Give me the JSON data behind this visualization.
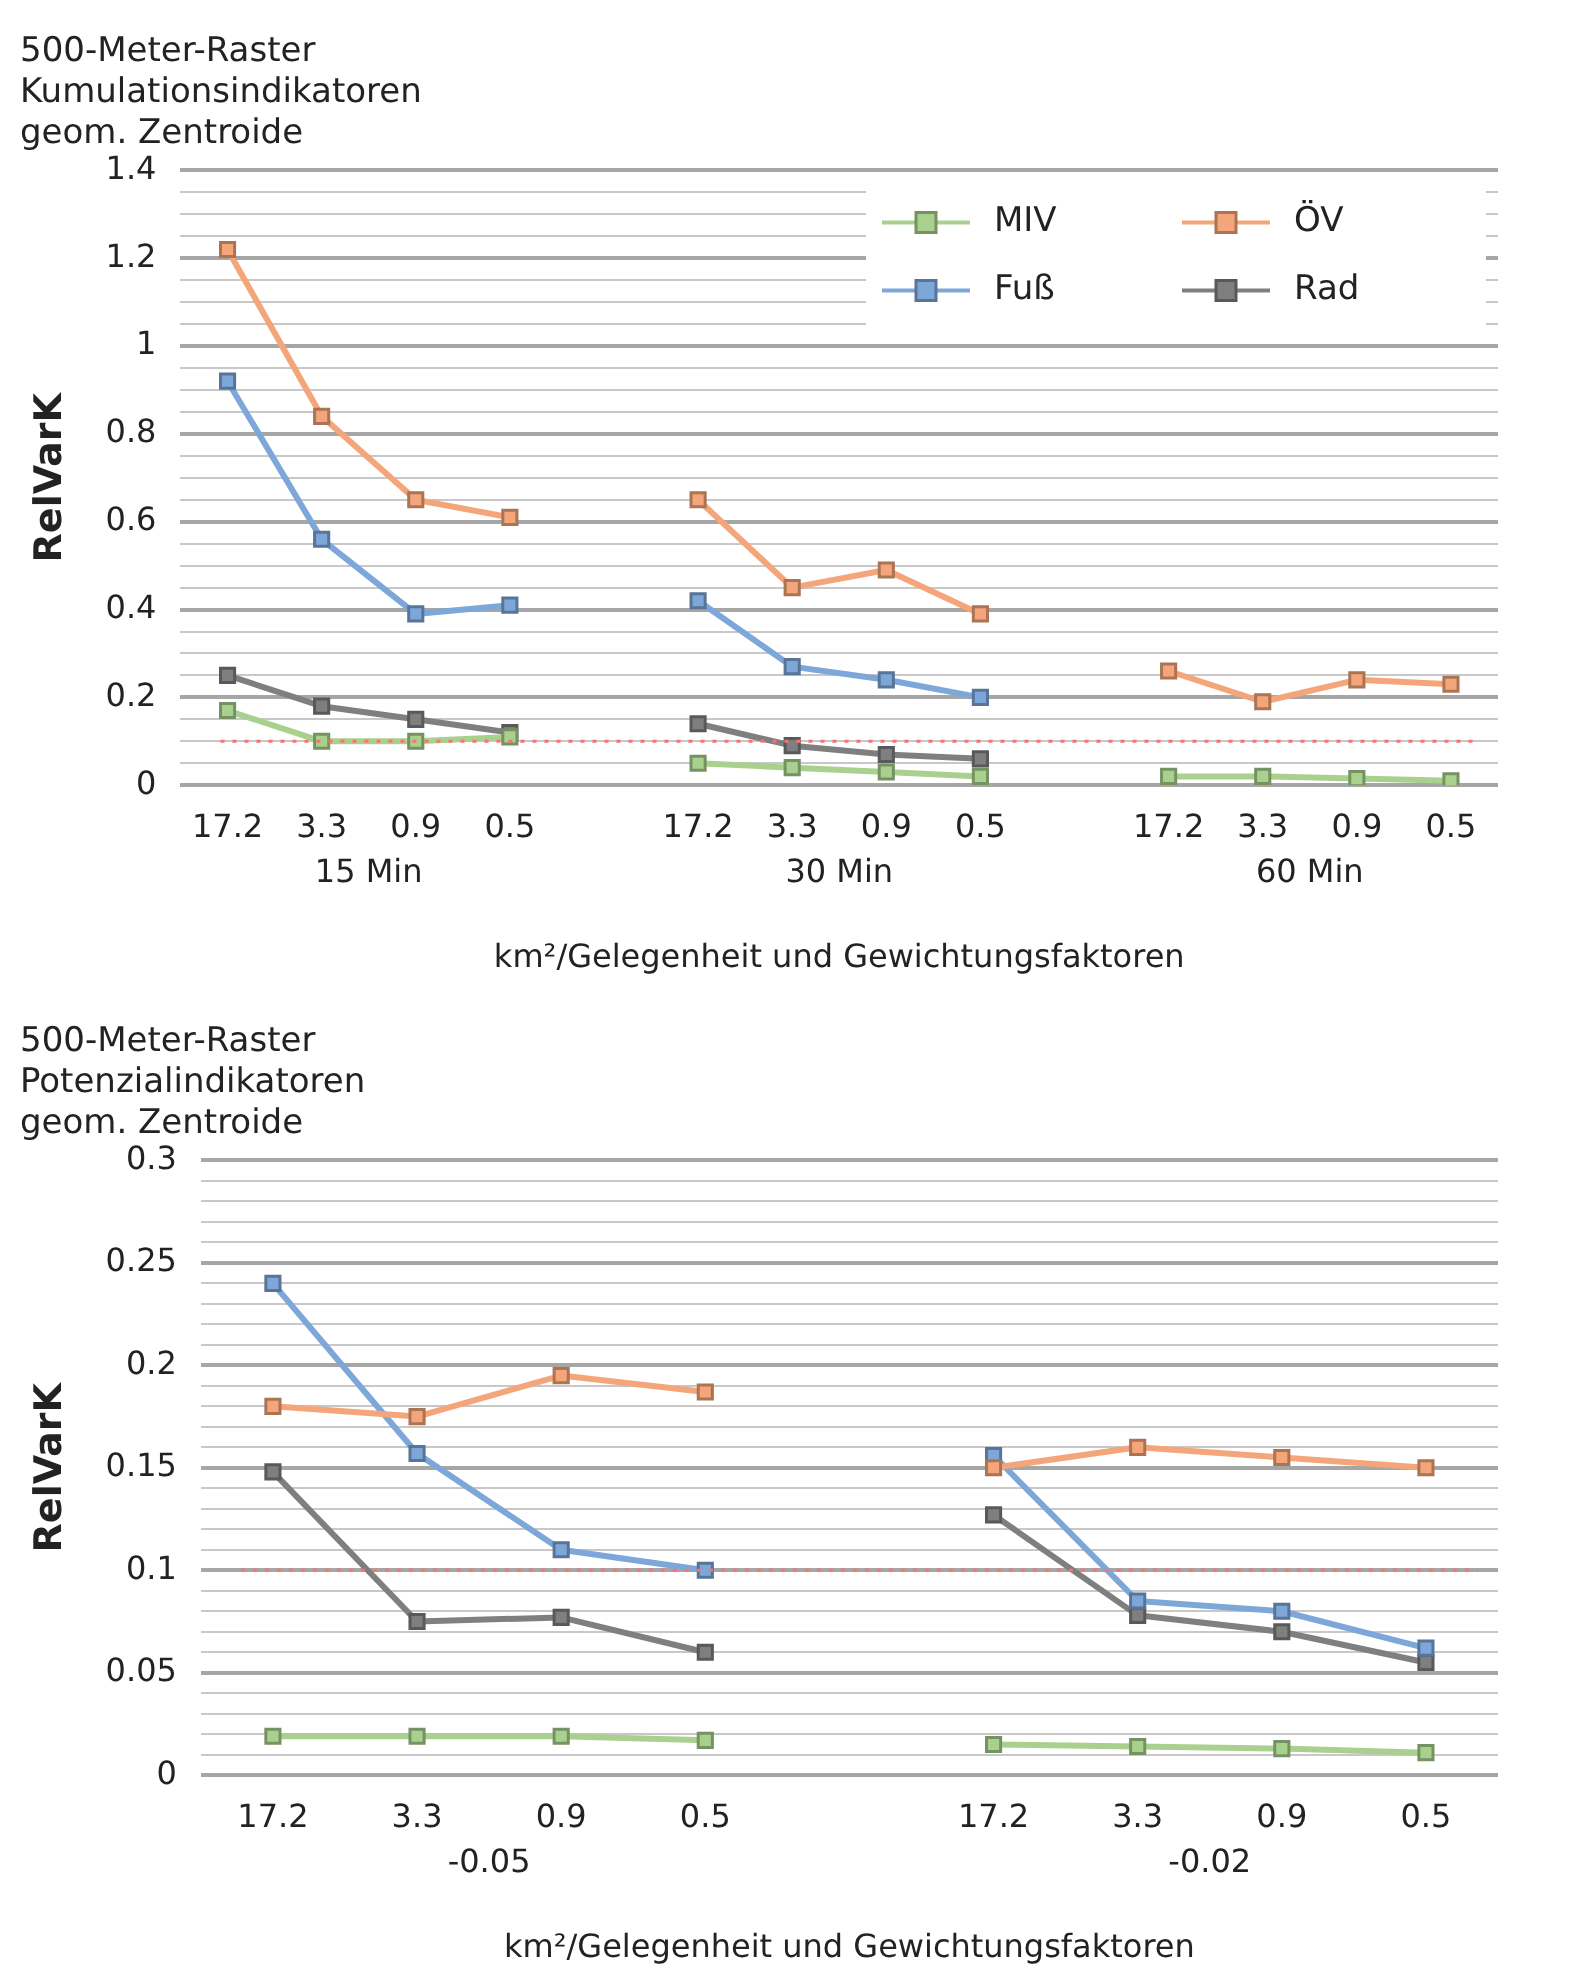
{
  "chart_data": [
    {
      "type": "line",
      "title": "500-Meter-Raster\nKumulationsindikatoren\ngeom. Zentroide",
      "xlabel": "km²/Gelegenheit und Gewichtungsfaktoren",
      "ylabel": "RelVarK",
      "categories": [
        "17.2",
        "3.3",
        "0.9",
        "0.5",
        null,
        "17.2",
        "3.3",
        "0.9",
        "0.5",
        null,
        "17.2",
        "3.3",
        "0.9",
        "0.5"
      ],
      "annotations": [
        "15 Min",
        "30 Min",
        "60 Min"
      ],
      "series": [
        {
          "name": "MIV",
          "color": "#a9d18e",
          "values": [
            0.17,
            0.1,
            0.1,
            0.11,
            null,
            0.05,
            0.04,
            0.03,
            0.02,
            null,
            0.02,
            0.02,
            0.015,
            0.01
          ]
        },
        {
          "name": "ÖV",
          "color": "#f4a67a",
          "values": [
            1.22,
            0.84,
            0.65,
            0.61,
            null,
            0.65,
            0.45,
            0.49,
            0.39,
            null,
            0.26,
            0.19,
            0.24,
            0.23
          ]
        },
        {
          "name": "Fuß",
          "color": "#7da7d9",
          "values": [
            0.92,
            0.56,
            0.39,
            0.41,
            null,
            0.42,
            0.27,
            0.24,
            0.2,
            null,
            null,
            null,
            null,
            null
          ]
        },
        {
          "name": "Rad",
          "color": "#7f7f7f",
          "values": [
            0.25,
            0.18,
            0.15,
            0.12,
            null,
            0.14,
            0.09,
            0.07,
            0.06,
            null,
            null,
            null,
            null,
            null
          ]
        }
      ],
      "ylim": [
        0,
        1.4
      ],
      "yticks": [
        0,
        {
          "value": 0.05,
          "label": null
        },
        {
          "value": 0.1,
          "label": null
        },
        {
          "value": 0.15,
          "label": null
        },
        {
          "value": 0.2,
          "label": "0.2"
        },
        {
          "value": 0.25,
          "label": null
        },
        {
          "value": 0.3,
          "label": null
        },
        {
          "value": 0.35,
          "label": null
        },
        {
          "value": 0.4,
          "label": "0.4"
        },
        {
          "value": 0.45,
          "label": null
        },
        {
          "value": 0.5,
          "label": null
        },
        {
          "value": 0.55,
          "label": null
        },
        {
          "value": 0.6,
          "label": "0.6"
        },
        {
          "value": 0.65,
          "label": null
        },
        {
          "value": 0.7,
          "label": null
        },
        {
          "value": 0.75,
          "label": null
        },
        {
          "value": 0.8,
          "label": "0.8"
        },
        {
          "value": 0.85,
          "label": null
        },
        {
          "value": 0.9,
          "label": null
        },
        {
          "value": 0.95,
          "label": null
        },
        1,
        {
          "value": 1.05,
          "label": null
        },
        {
          "value": 1.1,
          "label": null
        },
        {
          "value": 1.15,
          "label": null
        },
        {
          "value": 1.2,
          "label": "1.2"
        },
        {
          "value": 1.25,
          "label": null
        },
        {
          "value": 1.3,
          "label": null
        },
        {
          "value": 1.35,
          "label": null
        },
        {
          "value": 1.4,
          "label": "1.4"
        }
      ],
      "ref_lines": [
        {
          "axis": "y",
          "value": 0.1,
          "color": "#ff7070",
          "line_style": "dotted"
        }
      ],
      "grid": "y",
      "legend": "top right",
      "marker": "square"
    },
    {
      "type": "line",
      "title": "500-Meter-Raster\nPotenzialindikatoren\ngeom. Zentroide",
      "xlabel": "km²/Gelegenheit und Gewichtungsfaktoren",
      "ylabel": "RelVarK",
      "categories": [
        "17.2",
        "3.3",
        "0.9",
        "0.5",
        null,
        "17.2",
        "3.3",
        "0.9",
        "0.5"
      ],
      "annotations": [
        "-0.05",
        "-0.02"
      ],
      "series": [
        {
          "color": "#a9d18e",
          "values": [
            0.019,
            0.019,
            0.019,
            0.017,
            null,
            0.015,
            0.014,
            0.013,
            0.011
          ]
        },
        {
          "color": "#f4a67a",
          "values": [
            0.18,
            0.175,
            0.195,
            0.187,
            null,
            0.15,
            0.16,
            0.155,
            0.15
          ]
        },
        {
          "color": "#7da7d9",
          "values": [
            0.24,
            0.157,
            0.11,
            0.1,
            null,
            0.156,
            0.085,
            0.08,
            0.062
          ]
        },
        {
          "color": "#7f7f7f",
          "values": [
            0.148,
            0.075,
            0.077,
            0.06,
            null,
            0.127,
            0.078,
            0.07,
            0.055
          ]
        }
      ],
      "ylim": [
        0,
        0.3
      ],
      "yticks": [
        0,
        {
          "value": 0.01,
          "label": null
        },
        {
          "value": 0.02,
          "label": null
        },
        {
          "value": 0.03,
          "label": null
        },
        {
          "value": 0.04,
          "label": null
        },
        0.05,
        {
          "value": 0.06,
          "label": null
        },
        {
          "value": 0.07,
          "label": null
        },
        {
          "value": 0.08,
          "label": null
        },
        {
          "value": 0.09,
          "label": null
        },
        0.1,
        {
          "value": 0.11,
          "label": null
        },
        {
          "value": 0.12,
          "label": null
        },
        {
          "value": 0.13,
          "label": null
        },
        {
          "value": 0.14,
          "label": null
        },
        0.15,
        {
          "value": 0.16,
          "label": null
        },
        {
          "value": 0.17,
          "label": null
        },
        {
          "value": 0.18,
          "label": null
        },
        {
          "value": 0.19,
          "label": null
        },
        0.2,
        {
          "value": 0.21,
          "label": null
        },
        {
          "value": 0.22,
          "label": null
        },
        {
          "value": 0.23,
          "label": null
        },
        {
          "value": 0.24,
          "label": null
        },
        0.25,
        {
          "value": 0.26,
          "label": null
        },
        {
          "value": 0.27,
          "label": null
        },
        {
          "value": 0.28,
          "label": null
        },
        {
          "value": 0.29,
          "label": null
        },
        0.3
      ],
      "ref_lines": [
        {
          "axis": "y",
          "value": 0.1,
          "color": "#ff7070",
          "line_style": "dotted"
        }
      ],
      "grid": "y",
      "legend": false,
      "marker": "square"
    }
  ]
}
